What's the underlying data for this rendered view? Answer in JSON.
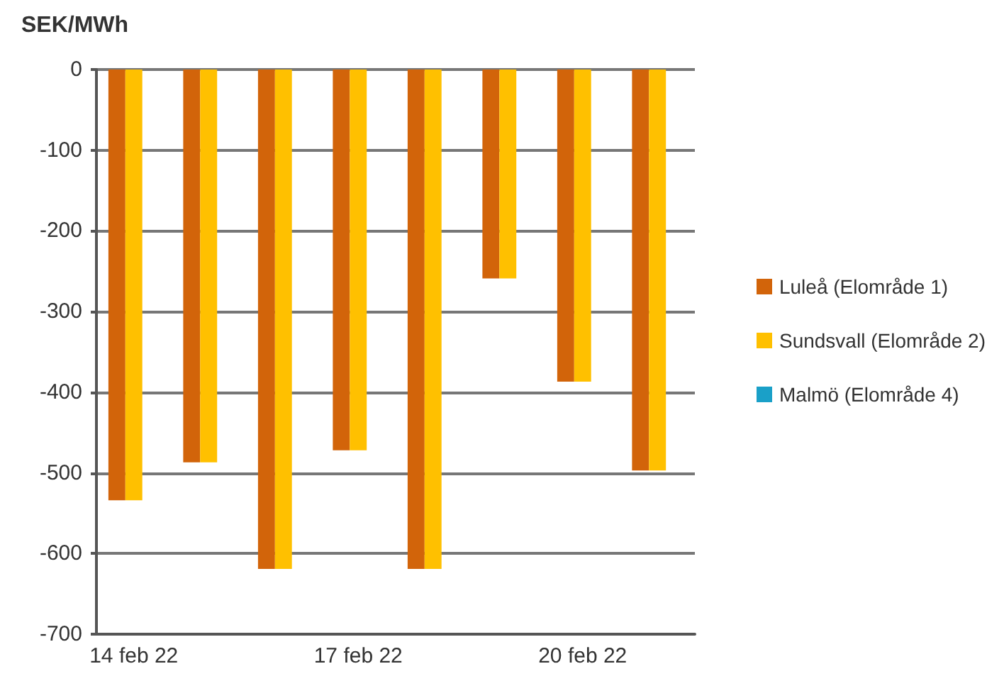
{
  "chart_data": {
    "type": "bar",
    "ylabel": "SEK/MWh",
    "categories": [
      "14 feb 22",
      null,
      null,
      "17 feb 22",
      null,
      null,
      "20 feb 22",
      null
    ],
    "series": [
      {
        "name": "Luleå (Elområde 1)",
        "color": "#d2640a",
        "values": [
          -534,
          -487,
          -619,
          -472,
          -619,
          -259,
          -387,
          -497
        ]
      },
      {
        "name": "Sundsvall (Elområde 2)",
        "color": "#ffc000",
        "values": [
          -534,
          -487,
          -619,
          -472,
          -619,
          -259,
          -387,
          -497
        ]
      },
      {
        "name": "Malmö (Elområde 4)",
        "color": "#1aa0c8",
        "values": [
          0,
          0,
          0,
          0,
          0,
          0,
          0,
          0
        ]
      }
    ],
    "ylim": [
      -700,
      0
    ],
    "yticks": [
      -700,
      -600,
      -500,
      -400,
      -300,
      -200,
      -100,
      0
    ],
    "grid": "y",
    "legend": "right"
  }
}
